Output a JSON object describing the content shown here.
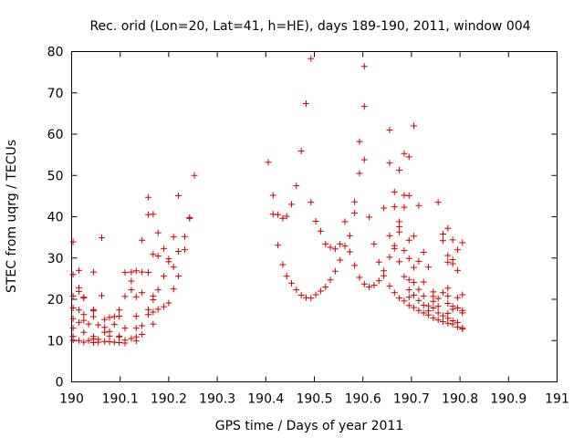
{
  "chart_data": {
    "type": "scatter",
    "title": "Rec. orid (Lon=20, Lat=41, h=HE), days 189-190, 2011, window 004",
    "xlabel": "GPS time / Days of year 2011",
    "ylabel": "STEC from uqrg / TECUs",
    "xlim": [
      190,
      191
    ],
    "ylim": [
      0,
      80
    ],
    "xticks": [
      "190",
      "190.1",
      "190.2",
      "190.3",
      "190.4",
      "190.5",
      "190.6",
      "190.7",
      "190.8",
      "190.9",
      "191"
    ],
    "yticks": [
      "0",
      "10",
      "20",
      "30",
      "40",
      "50",
      "60",
      "70",
      "80"
    ],
    "marker": "+",
    "color": "#cc0000",
    "points": [
      [
        190.003,
        33.9
      ],
      [
        190.003,
        26.0
      ],
      [
        190.003,
        20.8
      ],
      [
        190.003,
        17.9
      ],
      [
        190.003,
        15.3
      ],
      [
        190.003,
        13.0
      ],
      [
        190.003,
        11.0
      ],
      [
        190.003,
        10.1
      ],
      [
        190.015,
        27.0
      ],
      [
        190.015,
        22.8
      ],
      [
        190.015,
        21.9
      ],
      [
        190.015,
        17.4
      ],
      [
        190.015,
        14.4
      ],
      [
        190.015,
        10.0
      ],
      [
        190.025,
        20.5
      ],
      [
        190.025,
        20.3
      ],
      [
        190.025,
        16.3
      ],
      [
        190.025,
        14.9
      ],
      [
        190.025,
        12.0
      ],
      [
        190.025,
        9.6
      ],
      [
        190.035,
        14.0
      ],
      [
        190.035,
        10.0
      ],
      [
        190.045,
        26.6
      ],
      [
        190.045,
        17.5
      ],
      [
        190.045,
        17.2
      ],
      [
        190.045,
        15.8
      ],
      [
        190.045,
        11.0
      ],
      [
        190.045,
        10.4
      ],
      [
        190.045,
        9.5
      ],
      [
        190.055,
        13.8
      ],
      [
        190.055,
        10.3
      ],
      [
        190.055,
        9.6
      ],
      [
        190.062,
        34.9
      ],
      [
        190.062,
        20.9
      ],
      [
        190.068,
        15.1
      ],
      [
        190.068,
        13.2
      ],
      [
        190.068,
        12.0
      ],
      [
        190.068,
        9.8
      ],
      [
        190.078,
        15.6
      ],
      [
        190.078,
        12.2
      ],
      [
        190.078,
        11.1
      ],
      [
        190.078,
        9.7
      ],
      [
        190.088,
        15.8
      ],
      [
        190.088,
        13.9
      ],
      [
        190.088,
        9.6
      ],
      [
        190.098,
        17.4
      ],
      [
        190.098,
        15.9
      ],
      [
        190.098,
        11.1
      ],
      [
        190.098,
        10.9
      ],
      [
        190.098,
        9.5
      ],
      [
        190.11,
        26.5
      ],
      [
        190.11,
        20.7
      ],
      [
        190.11,
        13.0
      ],
      [
        190.11,
        10.1
      ],
      [
        190.11,
        9.4
      ],
      [
        190.123,
        26.6
      ],
      [
        190.123,
        24.4
      ],
      [
        190.123,
        22.3
      ],
      [
        190.123,
        10.5
      ],
      [
        190.133,
        26.9
      ],
      [
        190.133,
        20.6
      ],
      [
        190.133,
        15.9
      ],
      [
        190.133,
        13.0
      ],
      [
        190.133,
        10.9
      ],
      [
        190.133,
        9.9
      ],
      [
        190.145,
        34.3
      ],
      [
        190.145,
        26.6
      ],
      [
        190.145,
        21.6
      ],
      [
        190.145,
        13.6
      ],
      [
        190.145,
        11.5
      ],
      [
        190.158,
        44.7
      ],
      [
        190.158,
        40.5
      ],
      [
        190.158,
        26.5
      ],
      [
        190.158,
        17.5
      ],
      [
        190.158,
        16.3
      ],
      [
        190.168,
        40.6
      ],
      [
        190.168,
        30.9
      ],
      [
        190.168,
        20.8
      ],
      [
        190.168,
        19.9
      ],
      [
        190.168,
        16.9
      ],
      [
        190.168,
        14.0
      ],
      [
        190.178,
        36.1
      ],
      [
        190.178,
        30.5
      ],
      [
        190.178,
        22.3
      ],
      [
        190.178,
        17.6
      ],
      [
        190.19,
        32.3
      ],
      [
        190.19,
        25.6
      ],
      [
        190.19,
        18.2
      ],
      [
        190.2,
        29.8
      ],
      [
        190.2,
        29.1
      ],
      [
        190.2,
        19.1
      ],
      [
        190.21,
        35.1
      ],
      [
        190.21,
        27.8
      ],
      [
        190.21,
        22.5
      ],
      [
        190.22,
        45.1
      ],
      [
        190.22,
        31.6
      ],
      [
        190.22,
        25.6
      ],
      [
        190.233,
        35.2
      ],
      [
        190.233,
        32.0
      ],
      [
        190.243,
        39.8
      ],
      [
        190.243,
        39.6
      ],
      [
        190.253,
        50.0
      ],
      [
        190.405,
        53.2
      ],
      [
        190.415,
        45.2
      ],
      [
        190.415,
        40.6
      ],
      [
        190.425,
        40.5
      ],
      [
        190.425,
        33.1
      ],
      [
        190.435,
        39.6
      ],
      [
        190.435,
        28.4
      ],
      [
        190.443,
        40.1
      ],
      [
        190.443,
        25.6
      ],
      [
        190.453,
        43.0
      ],
      [
        190.453,
        23.9
      ],
      [
        190.463,
        47.5
      ],
      [
        190.463,
        22.3
      ],
      [
        190.473,
        55.9
      ],
      [
        190.473,
        21.0
      ],
      [
        190.483,
        67.4
      ],
      [
        190.483,
        20.4
      ],
      [
        190.493,
        78.3
      ],
      [
        190.493,
        43.5
      ],
      [
        190.493,
        20.3
      ],
      [
        190.503,
        38.9
      ],
      [
        190.503,
        21.1
      ],
      [
        190.513,
        36.5
      ],
      [
        190.513,
        22.0
      ],
      [
        190.523,
        33.4
      ],
      [
        190.523,
        23.0
      ],
      [
        190.533,
        32.6
      ],
      [
        190.533,
        24.7
      ],
      [
        190.543,
        32.2
      ],
      [
        190.543,
        26.8
      ],
      [
        190.553,
        33.4
      ],
      [
        190.553,
        29.5
      ],
      [
        190.563,
        38.8
      ],
      [
        190.563,
        32.9
      ],
      [
        190.573,
        35.4
      ],
      [
        190.573,
        31.5
      ],
      [
        190.583,
        43.6
      ],
      [
        190.583,
        40.9
      ],
      [
        190.583,
        28.2
      ],
      [
        190.593,
        58.2
      ],
      [
        190.593,
        50.5
      ],
      [
        190.593,
        25.3
      ],
      [
        190.603,
        76.4
      ],
      [
        190.603,
        66.7
      ],
      [
        190.603,
        53.8
      ],
      [
        190.603,
        23.7
      ],
      [
        190.613,
        39.9
      ],
      [
        190.613,
        23.0
      ],
      [
        190.623,
        33.4
      ],
      [
        190.623,
        23.4
      ],
      [
        190.633,
        29.0
      ],
      [
        190.633,
        24.5
      ],
      [
        190.643,
        42.1
      ],
      [
        190.643,
        26.9
      ],
      [
        190.643,
        25.7
      ],
      [
        190.655,
        61.0
      ],
      [
        190.655,
        53.0
      ],
      [
        190.655,
        35.4
      ],
      [
        190.655,
        30.2
      ],
      [
        190.655,
        23.2
      ],
      [
        190.665,
        46.0
      ],
      [
        190.665,
        42.4
      ],
      [
        190.665,
        33.0
      ],
      [
        190.665,
        32.3
      ],
      [
        190.665,
        21.6
      ],
      [
        190.675,
        51.3
      ],
      [
        190.675,
        38.8
      ],
      [
        190.675,
        37.6
      ],
      [
        190.675,
        36.3
      ],
      [
        190.675,
        29.1
      ],
      [
        190.675,
        20.3
      ],
      [
        190.685,
        55.3
      ],
      [
        190.685,
        45.2
      ],
      [
        190.685,
        42.3
      ],
      [
        190.685,
        31.8
      ],
      [
        190.685,
        25.5
      ],
      [
        190.685,
        19.6
      ],
      [
        190.695,
        54.5
      ],
      [
        190.695,
        45.1
      ],
      [
        190.695,
        34.3
      ],
      [
        190.695,
        29.9
      ],
      [
        190.695,
        24.7
      ],
      [
        190.695,
        22.3
      ],
      [
        190.695,
        20.5
      ],
      [
        190.695,
        18.5
      ],
      [
        190.705,
        62.0
      ],
      [
        190.705,
        35.3
      ],
      [
        190.705,
        27.7
      ],
      [
        190.705,
        24.1
      ],
      [
        190.705,
        21.0
      ],
      [
        190.705,
        18.0
      ],
      [
        190.715,
        42.7
      ],
      [
        190.715,
        29.2
      ],
      [
        190.715,
        22.4
      ],
      [
        190.715,
        19.7
      ],
      [
        190.715,
        17.3
      ],
      [
        190.725,
        31.4
      ],
      [
        190.725,
        24.2
      ],
      [
        190.725,
        20.8
      ],
      [
        190.725,
        18.6
      ],
      [
        190.725,
        16.7
      ],
      [
        190.735,
        27.8
      ],
      [
        190.735,
        18.4
      ],
      [
        190.735,
        17.2
      ],
      [
        190.735,
        16.2
      ],
      [
        190.745,
        21.8
      ],
      [
        190.745,
        20.7
      ],
      [
        190.745,
        19.5
      ],
      [
        190.745,
        17.9
      ],
      [
        190.745,
        15.5
      ],
      [
        190.755,
        43.5
      ],
      [
        190.755,
        20.2
      ],
      [
        190.755,
        18.3
      ],
      [
        190.755,
        16.7
      ],
      [
        190.755,
        15.0
      ],
      [
        190.765,
        35.8
      ],
      [
        190.765,
        34.2
      ],
      [
        190.765,
        21.6
      ],
      [
        190.765,
        16.0
      ],
      [
        190.765,
        14.6
      ],
      [
        190.775,
        37.2
      ],
      [
        190.775,
        30.6
      ],
      [
        190.775,
        29.0
      ],
      [
        190.775,
        22.7
      ],
      [
        190.775,
        20.8
      ],
      [
        190.775,
        19.0
      ],
      [
        190.775,
        16.6
      ],
      [
        190.775,
        15.4
      ],
      [
        190.775,
        14.2
      ],
      [
        190.785,
        34.4
      ],
      [
        190.785,
        29.6
      ],
      [
        190.785,
        28.6
      ],
      [
        190.785,
        18.3
      ],
      [
        190.785,
        17.6
      ],
      [
        190.785,
        14.8
      ],
      [
        190.785,
        14.0
      ],
      [
        190.795,
        32.0
      ],
      [
        190.795,
        27.0
      ],
      [
        190.795,
        20.4
      ],
      [
        190.795,
        17.9
      ],
      [
        190.795,
        14.4
      ],
      [
        190.795,
        13.3
      ],
      [
        190.805,
        33.7
      ],
      [
        190.805,
        21.1
      ],
      [
        190.805,
        17.3
      ],
      [
        190.805,
        16.7
      ],
      [
        190.805,
        13.1
      ],
      [
        190.805,
        12.8
      ]
    ]
  }
}
